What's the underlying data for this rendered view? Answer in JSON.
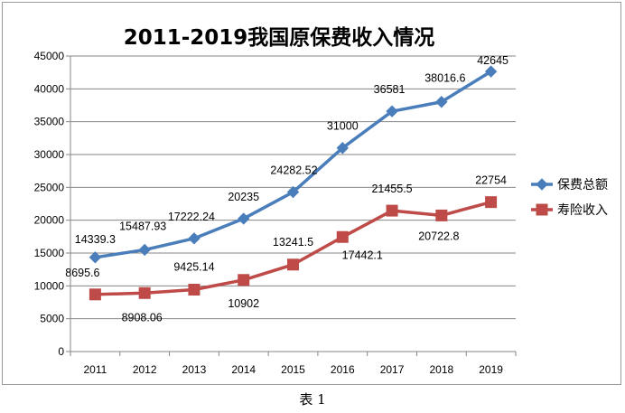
{
  "caption": "表 1",
  "chart_data": {
    "type": "line",
    "title": "2011-2019我国原保费收入情况",
    "xlabel": "",
    "ylabel": "",
    "categories": [
      "2011",
      "2012",
      "2013",
      "2014",
      "2015",
      "2016",
      "2017",
      "2018",
      "2019"
    ],
    "ylim": [
      0,
      45000
    ],
    "yticks": [
      0,
      5000,
      10000,
      15000,
      20000,
      25000,
      30000,
      35000,
      40000,
      45000
    ],
    "grid": true,
    "legend_position": "right",
    "series": [
      {
        "name": "保费总额",
        "color": "#4a7ebb",
        "marker": "diamond",
        "values": [
          14339.3,
          15487.93,
          17222.24,
          20235,
          24282.52,
          31000,
          36581,
          38016.6,
          42645
        ],
        "labels": [
          "14339.3",
          "15487.93",
          "17222.24",
          "20235",
          "24282.52",
          "31000",
          "36581",
          "38016.6",
          "42645"
        ]
      },
      {
        "name": "寿险收入",
        "color": "#be4b48",
        "marker": "square",
        "values": [
          8695.6,
          8908.06,
          9425.14,
          10902,
          13241.5,
          17442.1,
          21455.5,
          20722.8,
          22754
        ],
        "labels": [
          "8695.6",
          "8908.06",
          "9425.14",
          "10902",
          "13241.5",
          "17442.1",
          "21455.5",
          "20722.8",
          "22754"
        ]
      }
    ]
  }
}
